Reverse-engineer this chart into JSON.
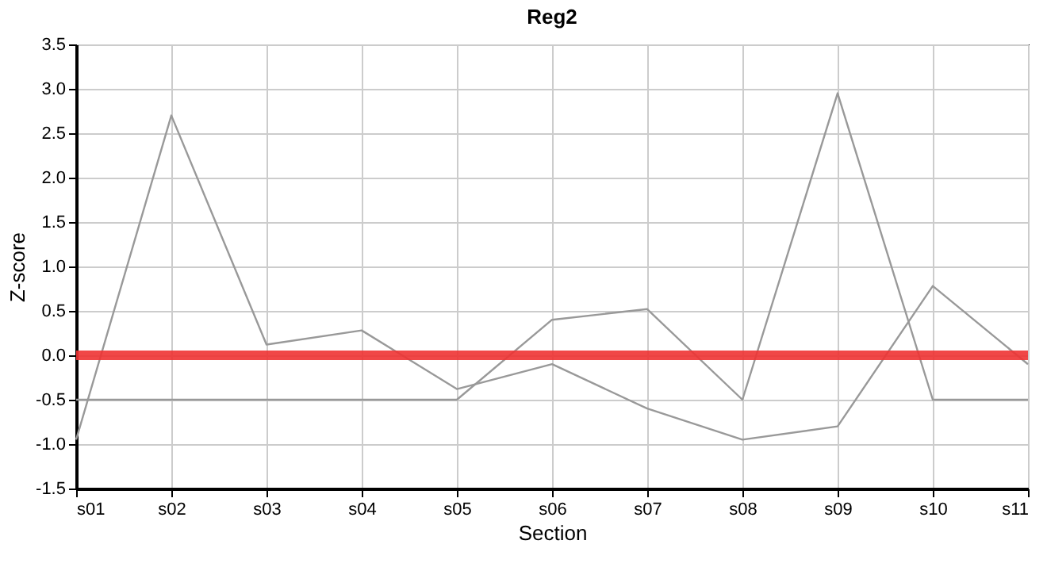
{
  "chart_data": {
    "type": "line",
    "title": "Reg2",
    "xlabel": "Section",
    "ylabel": "Z-score",
    "categories": [
      "s01",
      "s02",
      "s03",
      "s04",
      "s05",
      "s06",
      "s07",
      "s08",
      "s09",
      "s10",
      "s11"
    ],
    "series": [
      {
        "color": "#999999",
        "values": [
          -0.95,
          2.7,
          0.12,
          0.28,
          -0.38,
          -0.1,
          -0.6,
          -0.95,
          -0.8,
          0.78,
          -0.1
        ]
      },
      {
        "color": "#999999",
        "values": [
          -0.5,
          -0.5,
          -0.5,
          -0.5,
          -0.5,
          0.4,
          0.52,
          -0.5,
          2.95,
          -0.5,
          -0.5
        ]
      }
    ],
    "ylim": [
      -1.5,
      3.5
    ],
    "yticks": [
      {
        "value": -1.5,
        "label": "-1.5"
      },
      {
        "value": -1,
        "label": "-1.0"
      },
      {
        "value": -0.5,
        "label": "-0.5"
      },
      {
        "value": 0,
        "label": "0.0"
      },
      {
        "value": 0.5,
        "label": "0.5"
      },
      {
        "value": 1,
        "label": "1.0"
      },
      {
        "value": 1.5,
        "label": "1.5"
      },
      {
        "value": 2,
        "label": "2.0"
      },
      {
        "value": 2.5,
        "label": "2.5"
      },
      {
        "value": 3,
        "label": "3.0"
      },
      {
        "value": 3.5,
        "label": "3.5"
      }
    ],
    "ref_lines": [
      {
        "axis": "y",
        "value": 0,
        "color": "#ee3333"
      }
    ],
    "grid": true,
    "legend": false,
    "marker": "none",
    "line_style": "solid"
  }
}
